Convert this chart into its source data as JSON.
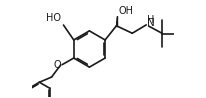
{
  "bg_color": "#ffffff",
  "line_color": "#1a1a1a",
  "line_width": 1.2,
  "font_size": 6.5,
  "figsize": [
    2.06,
    0.98
  ],
  "dpi": 100,
  "xlim": [
    -1.0,
    1.35
  ],
  "ylim": [
    -0.85,
    0.75
  ]
}
